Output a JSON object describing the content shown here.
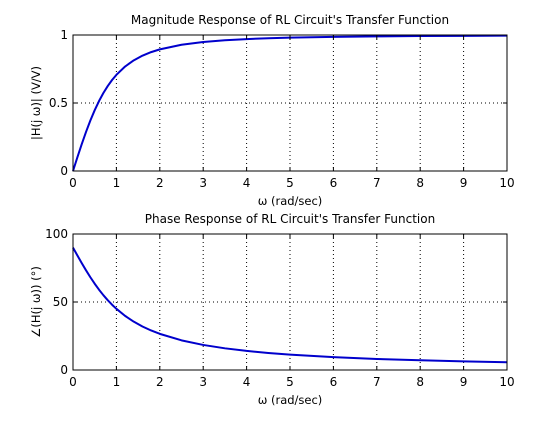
{
  "figure": {
    "background": "#ffffff",
    "line_color": "#0000cc",
    "axis_color": "#000000",
    "grid_color": "#000000"
  },
  "chart_data": [
    {
      "type": "line",
      "title": "Magnitude Response of RL Circuit's Transfer Function",
      "xlabel": "ω (rad/sec)",
      "ylabel": "|H(j ω)| (V/V)",
      "xlim": [
        0,
        10
      ],
      "ylim": [
        0,
        1
      ],
      "xticks": [
        0,
        1,
        2,
        3,
        4,
        5,
        6,
        7,
        8,
        9,
        10
      ],
      "xtick_labels": [
        "0",
        "1",
        "2",
        "3",
        "4",
        "5",
        "6",
        "7",
        "8",
        "9",
        "10"
      ],
      "yticks": [
        0,
        0.5,
        1
      ],
      "ytick_labels": [
        "0",
        "0.5",
        "1"
      ],
      "grid": "dotted",
      "series": [
        {
          "x": [
            0,
            0.1,
            0.2,
            0.3,
            0.4,
            0.5,
            0.6,
            0.7,
            0.8,
            0.9,
            1.0,
            1.2,
            1.4,
            1.6,
            1.8,
            2.0,
            2.5,
            3.0,
            3.5,
            4.0,
            4.5,
            5.0,
            6.0,
            7.0,
            8.0,
            9.0,
            10.0
          ],
          "y": [
            0,
            0.0995,
            0.1961,
            0.2873,
            0.3714,
            0.4472,
            0.5145,
            0.5735,
            0.6247,
            0.669,
            0.7071,
            0.7682,
            0.8137,
            0.848,
            0.8742,
            0.8944,
            0.9285,
            0.9487,
            0.9615,
            0.9701,
            0.9762,
            0.9806,
            0.9864,
            0.9899,
            0.9923,
            0.9939,
            0.995
          ]
        }
      ]
    },
    {
      "type": "line",
      "title": "Phase Response of RL Circuit's Transfer Function",
      "xlabel": "ω (rad/sec)",
      "ylabel": "∠(H(j ω)) (°)",
      "xlim": [
        0,
        10
      ],
      "ylim": [
        0,
        100
      ],
      "xticks": [
        0,
        1,
        2,
        3,
        4,
        5,
        6,
        7,
        8,
        9,
        10
      ],
      "xtick_labels": [
        "0",
        "1",
        "2",
        "3",
        "4",
        "5",
        "6",
        "7",
        "8",
        "9",
        "10"
      ],
      "yticks": [
        0,
        50,
        100
      ],
      "ytick_labels": [
        "0",
        "50",
        "100"
      ],
      "grid": "dotted",
      "series": [
        {
          "x": [
            0,
            0.1,
            0.2,
            0.3,
            0.4,
            0.5,
            0.6,
            0.7,
            0.8,
            0.9,
            1.0,
            1.2,
            1.4,
            1.6,
            1.8,
            2.0,
            2.5,
            3.0,
            3.5,
            4.0,
            4.5,
            5.0,
            6.0,
            7.0,
            8.0,
            9.0,
            10.0
          ],
          "y": [
            90,
            84.29,
            78.69,
            73.3,
            68.2,
            63.43,
            59.04,
            55.01,
            51.34,
            48.01,
            45.0,
            39.81,
            35.54,
            32.01,
            29.05,
            26.57,
            21.8,
            18.43,
            15.95,
            14.04,
            12.53,
            11.31,
            9.46,
            8.13,
            7.13,
            6.34,
            5.71
          ]
        }
      ]
    }
  ]
}
